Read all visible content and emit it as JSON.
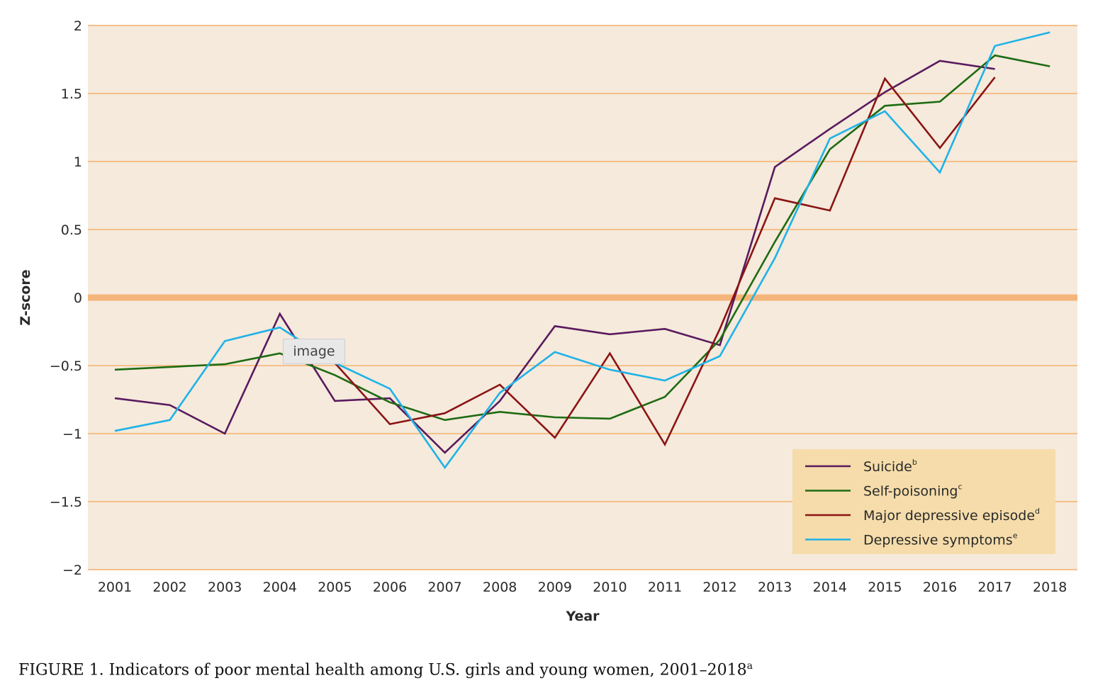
{
  "chart_data": {
    "type": "line",
    "title": "",
    "xlabel": "Year",
    "ylabel": "Z-score",
    "ylim": [
      -2,
      2
    ],
    "yticks": [
      2,
      1.5,
      1,
      0.5,
      0,
      -0.5,
      -1,
      -1.5,
      -2
    ],
    "ytick_labels": [
      "2",
      "1.5",
      "1",
      "0.5",
      "0",
      "−0.5",
      "−1",
      "−1.5",
      "−2"
    ],
    "x": [
      "2001",
      "2002",
      "2003",
      "2004",
      "2005",
      "2006",
      "2007",
      "2008",
      "2009",
      "2010",
      "2011",
      "2012",
      "2013",
      "2014",
      "2015",
      "2016",
      "2017",
      "2018"
    ],
    "grid": true,
    "legend_position": "bottom-right",
    "series": [
      {
        "name": "Suicide",
        "sup": "b",
        "color": "#5a1a5e",
        "values": [
          -0.74,
          -0.79,
          -1.0,
          -0.12,
          -0.76,
          -0.74,
          -1.14,
          -0.76,
          -0.21,
          -0.27,
          -0.23,
          -0.35,
          0.96,
          1.24,
          1.51,
          1.74,
          1.68,
          null
        ]
      },
      {
        "name": "Self-poisoning",
        "sup": "c",
        "color": "#1e6b12",
        "values": [
          -0.53,
          -0.51,
          -0.49,
          -0.41,
          -0.57,
          -0.77,
          -0.9,
          -0.84,
          -0.88,
          -0.89,
          -0.73,
          -0.31,
          0.41,
          1.09,
          1.41,
          1.44,
          1.78,
          1.7
        ]
      },
      {
        "name": "Major depressive episode",
        "sup": "d",
        "color": "#8b1414",
        "values": [
          null,
          null,
          null,
          null,
          -0.48,
          -0.93,
          -0.85,
          -0.64,
          -1.03,
          -0.41,
          -1.08,
          -0.23,
          0.73,
          0.64,
          1.61,
          1.1,
          1.62,
          null
        ]
      },
      {
        "name": "Depressive symptoms",
        "sup": "e",
        "color": "#1fb2e8",
        "values": [
          -0.98,
          -0.9,
          -0.32,
          -0.22,
          -0.48,
          -0.67,
          -1.25,
          -0.7,
          -0.4,
          -0.53,
          -0.61,
          -0.43,
          0.29,
          1.17,
          1.37,
          0.92,
          1.85,
          1.95
        ]
      }
    ],
    "colors": {
      "plot_background": "#f5eadc",
      "gridline": "#f5c08a",
      "zero_line": "#f5b57a",
      "legend_background": "#f5dcaa"
    }
  },
  "tooltip": {
    "text": "image"
  },
  "caption": {
    "text": "FIGURE 1. Indicators of poor mental health among U.S. girls and young women, 2001–2018",
    "sup": "a"
  }
}
